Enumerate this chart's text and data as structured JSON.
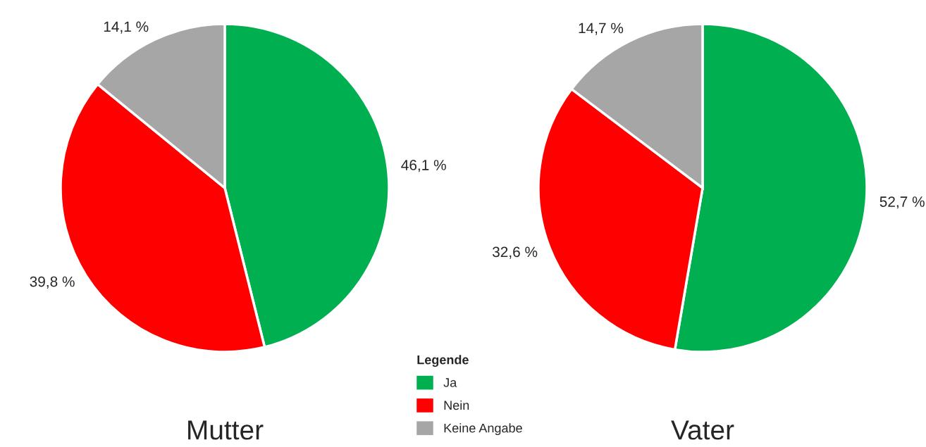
{
  "chart_data": [
    {
      "type": "pie",
      "title": "Mutter",
      "categories": [
        "Ja",
        "Nein",
        "Keine Angabe"
      ],
      "values": [
        46.1,
        39.8,
        14.1
      ],
      "value_labels": [
        "46,1 %",
        "39,8 %",
        "14,1 %"
      ],
      "colors": [
        "#00b050",
        "#ff0000",
        "#a6a6a6"
      ],
      "legend": "bottom right",
      "legend_title": "Legende"
    },
    {
      "type": "pie",
      "title": "Vater",
      "values": [
        52.7,
        32.6,
        14.7
      ],
      "value_labels": [
        "52,7 %",
        "32,6 %",
        "14,7 %"
      ],
      "colors": [
        "#00b050",
        "#ff0000",
        "#a6a6a6"
      ]
    }
  ]
}
